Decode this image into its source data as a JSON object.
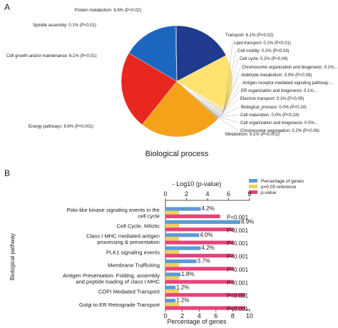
{
  "panels": {
    "a": "A",
    "b": "B"
  },
  "colors": {
    "pct_genes": "#5b9bd5",
    "reference": "#f2cf5b",
    "pvalue": "#e8437a",
    "leader": "#999999",
    "axis": "#222222"
  },
  "chart_data": [
    {
      "type": "pie",
      "xlabel": "Biological process",
      "slices": [
        {
          "label": "Protein metabolism: 6.6% (P<0.02)",
          "value": 6.6,
          "color": "#1f3a8f"
        },
        {
          "label": "Transport: 6.1% (P<0.02)",
          "value": 6.1,
          "color": "#ffe270"
        },
        {
          "label": "Lipid transport: 0.1% (P<0.01)",
          "value": 0.1,
          "color": "#f3e39a"
        },
        {
          "label": "Cell motility: 0.2% (P<0.03)",
          "value": 0.2,
          "color": "#e8e2b0"
        },
        {
          "label": "Cell cycle: 0.2% (P<0.04)",
          "value": 0.2,
          "color": "#dcdcc8"
        },
        {
          "label": "Chromosome organization and biogenesis: 0.1%...",
          "value": 0.1,
          "color": "#d6d6d6"
        },
        {
          "label": "Aldehyde metabolism: 0.0% (P<0.09)",
          "value": 0.05,
          "color": "#cfcfcf"
        },
        {
          "label": "Antigen receptor-mediated signaling pathway:...",
          "value": 0.05,
          "color": "#c8c8c8"
        },
        {
          "label": "ER organization and biogenesis: 0.1%...",
          "value": 0.1,
          "color": "#c2c2c2"
        },
        {
          "label": "Electron transport: 0.1% (P<0.09)",
          "value": 0.1,
          "color": "#bbbbbb"
        },
        {
          "label": "Biological_process: 0.0% (P<0.24)",
          "value": 0.05,
          "color": "#b5b5b5"
        },
        {
          "label": "Cell maturation: 0.0% (P<0.24)",
          "value": 0.05,
          "color": "#afafaf"
        },
        {
          "label": "Cell organization and biogenesis: 0.0%...",
          "value": 0.05,
          "color": "#a8a8a8"
        },
        {
          "label": "Chromosome segregation: 0.2% (P<0.06)",
          "value": 0.2,
          "color": "#a2a2a2"
        },
        {
          "label": "Metabolism: 9.1% (P<0.001)",
          "value": 9.1,
          "color": "#f5a21a"
        },
        {
          "label": "Energy pathways: 8.6% (P<0.001)",
          "value": 8.6,
          "color": "#e8271e"
        },
        {
          "label": "Cell growth and/or maintenance: 6.1% (P<0.01)",
          "value": 6.1,
          "color": "#1c66bf"
        },
        {
          "label": "Spindle assembly: 0.1% (P<0.01)",
          "value": 0.1,
          "color": "#17307a"
        }
      ]
    },
    {
      "type": "bar",
      "ylabel": "Biological pathway",
      "xlabel_bottom": "Percentage of genes",
      "xlabel_top": "- Log10 (p-value)",
      "xlim_bottom": [
        0,
        10
      ],
      "xlim_top": [
        0,
        8
      ],
      "ticks_bottom": [
        "0",
        "2",
        "4",
        "6",
        "8",
        "10"
      ],
      "ticks_top": [
        "0",
        "2",
        "4",
        "6",
        "8"
      ],
      "legend": [
        "Percentage of genes",
        "p=0.05 reference",
        "p-value"
      ],
      "categories": [
        [
          "Polo-like kinase signaling events in the",
          "cell cycle"
        ],
        [
          "Cell Cycle, Mitotic"
        ],
        [
          "Class I MHC mediated antigen",
          "processing & presentation"
        ],
        [
          "PLK1 signaling events"
        ],
        [
          "Membrane Trafficking"
        ],
        [
          "Antigen Presentation: Folding, assembly",
          "and peptide loading of class I MHC"
        ],
        [
          "COPI Mediated Transport"
        ],
        [
          "Golgi to ER Retrograde Transport"
        ]
      ],
      "series": [
        {
          "name": "Percentage of genes",
          "values": [
            4.2,
            8.9,
            4.0,
            4.2,
            3.7,
            1.8,
            1.2,
            1.2
          ],
          "labels": [
            "4.2%",
            "8.9%",
            "4.0%",
            "4.2%",
            "3.7%",
            "1.8%",
            "1.2%",
            "1.2%"
          ]
        },
        {
          "name": "p=0.05 reference",
          "values": [
            1.3,
            1.3,
            1.3,
            1.3,
            1.3,
            1.3,
            1.3,
            1.3
          ]
        },
        {
          "name": "p-value",
          "values": [
            5.2,
            6.5,
            6.5,
            6.5,
            6.5,
            6.5,
            7.6,
            7.6
          ],
          "labels": [
            "P<0.001",
            "P<0.001",
            "P<0.001",
            "P<0.001",
            "P<0.001",
            "P<0.001",
            "P<0.001",
            "P<0.001"
          ]
        }
      ]
    }
  ]
}
